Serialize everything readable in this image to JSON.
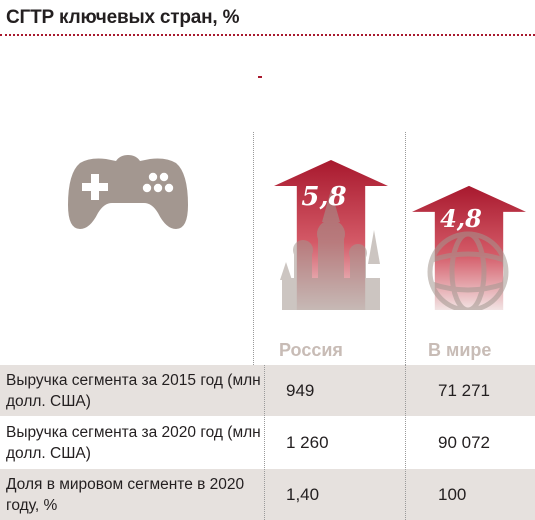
{
  "header": {
    "title": "СГТР ключевых стран, %"
  },
  "chart_data": {
    "type": "bar",
    "title": "СГТР ключевых стран, %",
    "categories": [
      "Россия",
      "В мире"
    ],
    "values": [
      5.8,
      4.8
    ],
    "value_labels": [
      "5,8",
      "4,8"
    ],
    "colors": {
      "arrow_top": "#a8192e",
      "arrow_bottom": "#f2e4e4",
      "label": "#c8bcb6",
      "icon": "#a39790",
      "row_shade": "#e6e1de"
    }
  },
  "icons": [
    "gamepad-icon",
    "kremlin-icon",
    "globe-icon"
  ],
  "table": {
    "rows": [
      {
        "label": "Выручка сегмента за 2015 год (млн долл. США)",
        "russia": "949",
        "world": "71 271",
        "shaded": true
      },
      {
        "label": "Выручка сегмента за 2020 год (млн долл. США)",
        "russia": "1 260",
        "world": "90 072",
        "shaded": false
      },
      {
        "label": "Доля в мировом сегменте в 2020 году, %",
        "russia": "1,40",
        "world": "100",
        "shaded": true
      }
    ]
  }
}
